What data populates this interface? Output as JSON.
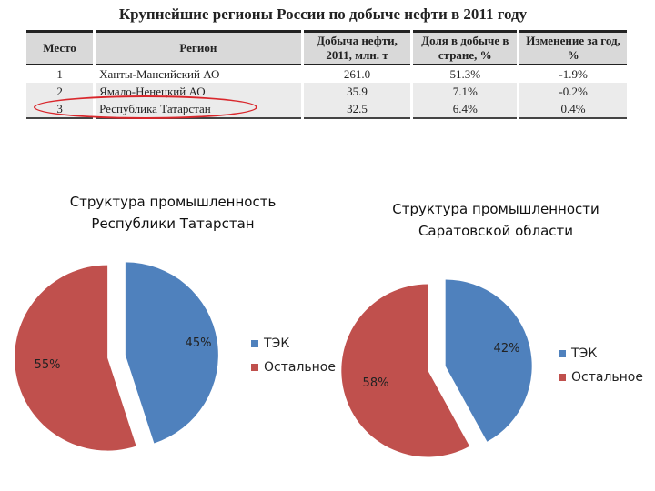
{
  "table": {
    "title": "Крупнейшие регионы России по добыче нефти в 2011 году",
    "headers": [
      "Место",
      "Регион",
      "Добыча нефти, 2011, млн. т",
      "Доля в добыче в стране, %",
      "Изменение за год, %"
    ],
    "rows": [
      [
        "1",
        "Ханты-Мансийский АО",
        "261.0",
        "51.3%",
        "-1.9%"
      ],
      [
        "2",
        "Ямало-Ненецкий АО",
        "35.9",
        "7.1%",
        "-0.2%"
      ],
      [
        "3",
        "Республика Татарстан",
        "32.5",
        "6.4%",
        "0.4%"
      ]
    ],
    "highlighted_row": 3,
    "highlight_color": "#d9272c"
  },
  "chart_data": [
    {
      "type": "pie",
      "title": "Структура промышленность Республики Татарстан",
      "categories": [
        "ТЭК",
        "Остальное"
      ],
      "values": [
        45,
        55
      ],
      "labels": [
        "45%",
        "55%"
      ],
      "colors": [
        "#4f81bd",
        "#c0504d"
      ],
      "legend": "right",
      "exploded": true
    },
    {
      "type": "pie",
      "title": "Структура промышленности Саратовской области",
      "categories": [
        "ТЭК",
        "Остальное"
      ],
      "values": [
        42,
        58
      ],
      "labels": [
        "42%",
        "58%"
      ],
      "colors": [
        "#4f81bd",
        "#c0504d"
      ],
      "legend": "right",
      "exploded": true
    }
  ]
}
